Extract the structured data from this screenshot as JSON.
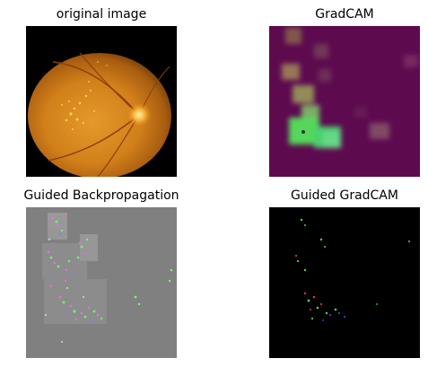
{
  "panels": [
    {
      "title": "original image"
    },
    {
      "title": "GradCAM"
    },
    {
      "title": "Guided Backpropagation"
    },
    {
      "title": "Guided GradCAM"
    }
  ],
  "colors": {
    "fundus_bg": "#000000",
    "fundus_orange": "#d88a1c",
    "gradcam_bg": "#5d0a4f",
    "heat_green": "#54d85a",
    "guided_bp_bg": "#808080",
    "guided_gradcam_bg": "#000000"
  }
}
